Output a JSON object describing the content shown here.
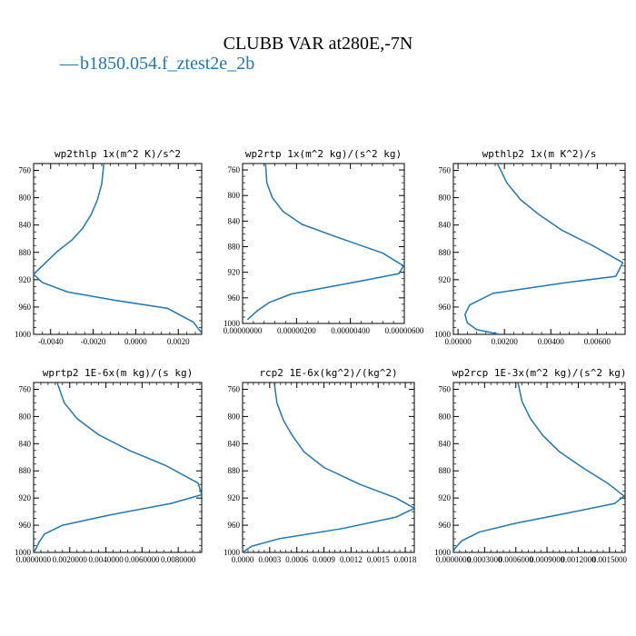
{
  "figure": {
    "title": "CLUBB VAR at280E,-7N",
    "legend": {
      "marker": "—",
      "label": "b1850.054.f_ztest2e_2b",
      "color": "#1f77b4"
    }
  },
  "chart_data": [
    {
      "type": "line",
      "title": "wp2thlp  1x(m^2 K)/s^2",
      "xlim": [
        -0.0048,
        0.0031
      ],
      "ylim": [
        1000,
        750
      ],
      "x_ticks": [
        -0.004,
        -0.002,
        0.0,
        0.002
      ],
      "x_tick_labels": [
        "-0.0040",
        "-0.0020",
        "0.0000",
        "0.0020"
      ],
      "y_ticks": [
        760,
        800,
        840,
        880,
        920,
        960,
        1000
      ],
      "y_tick_labels": [
        "760",
        "800",
        "840",
        "880",
        "920",
        "960",
        "1000"
      ],
      "series": [
        {
          "color": "#1f77b4",
          "x": [
            -0.0015,
            -0.0016,
            -0.0018,
            -0.0021,
            -0.0025,
            -0.003,
            -0.0037,
            -0.0043,
            -0.0048,
            -0.0044,
            -0.0032,
            -0.001,
            0.0015,
            0.0027,
            0.0031
          ],
          "y": [
            750,
            780,
            803,
            825,
            845,
            862,
            879,
            897,
            912,
            924,
            938,
            950,
            962,
            982,
            998
          ]
        }
      ]
    },
    {
      "type": "line",
      "title": "wp2rtp  1x(m^2 kg)/(s^2 kg)",
      "xlim": [
        0.0,
        6e-06
      ],
      "ylim": [
        1000,
        750
      ],
      "x_ticks": [
        0.0,
        2e-06,
        4e-06,
        6e-06
      ],
      "x_tick_labels": [
        "0.00000000",
        "0.00000200",
        "0.00000400",
        "0.00000600"
      ],
      "y_ticks": [
        760,
        800,
        840,
        880,
        920,
        960,
        1000
      ],
      "y_tick_labels": [
        "760",
        "800",
        "840",
        "880",
        "920",
        "960",
        "1000"
      ],
      "series": [
        {
          "color": "#1f77b4",
          "x": [
            8.5e-07,
            9e-07,
            1.1e-06,
            1.5e-06,
            2.2e-06,
            3.5e-06,
            5.2e-06,
            5.97e-06,
            5.8e-06,
            4.6e-06,
            3.2e-06,
            1.8e-06,
            1e-06,
            5.5e-07,
            1.8e-07
          ],
          "y": [
            750,
            780,
            803,
            825,
            845,
            865,
            890,
            910,
            922,
            932,
            943,
            954,
            967,
            980,
            994
          ]
        }
      ]
    },
    {
      "type": "line",
      "title": "wpthlp2  1x(m K^2)/s",
      "xlim": [
        -0.0002,
        0.0072
      ],
      "ylim": [
        1000,
        750
      ],
      "x_ticks": [
        0.0,
        0.002,
        0.004,
        0.006
      ],
      "x_tick_labels": [
        "0.00000",
        "0.00200",
        "0.00400",
        "0.00600"
      ],
      "y_ticks": [
        760,
        800,
        840,
        880,
        920,
        960,
        1000
      ],
      "y_tick_labels": [
        "760",
        "800",
        "840",
        "880",
        "920",
        "960",
        "1000"
      ],
      "series": [
        {
          "color": "#1f77b4",
          "x": [
            0.0017,
            0.0021,
            0.0027,
            0.0035,
            0.0045,
            0.0058,
            0.0071,
            0.0068,
            0.0045,
            0.0015,
            0.0005,
            0.0003,
            0.0004,
            0.0008,
            0.0018
          ],
          "y": [
            750,
            778,
            803,
            825,
            848,
            870,
            895,
            915,
            925,
            940,
            957,
            971,
            983,
            993,
            1000
          ]
        }
      ]
    },
    {
      "type": "line",
      "title": "wprtp2  1E-6x(m kg)/(s kg)",
      "xlim": [
        0.0,
        0.0093
      ],
      "ylim": [
        1000,
        750
      ],
      "x_ticks": [
        0.0,
        0.002,
        0.004,
        0.006,
        0.008
      ],
      "x_tick_labels": [
        "0.0000000",
        "0.0020000",
        "0.0040000",
        "0.0060000",
        "0.0080000"
      ],
      "y_ticks": [
        760,
        800,
        840,
        880,
        920,
        960,
        1000
      ],
      "y_tick_labels": [
        "760",
        "800",
        "840",
        "880",
        "920",
        "960",
        "1000"
      ],
      "series": [
        {
          "color": "#1f77b4",
          "x": [
            0.0013,
            0.0017,
            0.0024,
            0.0036,
            0.0053,
            0.0073,
            0.0091,
            0.0093,
            0.0076,
            0.0042,
            0.0016,
            0.0006,
            0.0003,
            0.0001,
            0.0
          ],
          "y": [
            750,
            780,
            803,
            827,
            850,
            872,
            898,
            915,
            928,
            945,
            960,
            973,
            985,
            996,
            1000
          ]
        }
      ]
    },
    {
      "type": "line",
      "title": "rcp2  1E-6x(kg^2)/(kg^2)",
      "xlim": [
        0.0,
        0.0019
      ],
      "ylim": [
        1000,
        750
      ],
      "x_ticks": [
        0.0,
        0.0003,
        0.0006,
        0.0009,
        0.0012,
        0.0015,
        0.0018
      ],
      "x_tick_labels": [
        "0.0000",
        "0.0003",
        "0.0006",
        "0.0009",
        "0.0012",
        "0.0015",
        "0.0018"
      ],
      "y_ticks": [
        760,
        800,
        840,
        880,
        920,
        960,
        1000
      ],
      "y_tick_labels": [
        "760",
        "800",
        "840",
        "880",
        "920",
        "960",
        "1000"
      ],
      "series": [
        {
          "color": "#1f77b4",
          "x": [
            0.00035,
            0.00038,
            0.00045,
            0.00055,
            0.00068,
            0.0009,
            0.0013,
            0.0017,
            0.0019,
            0.0017,
            0.0011,
            0.0004,
            0.0001,
            2e-05,
            0.0
          ],
          "y": [
            750,
            780,
            805,
            828,
            852,
            875,
            900,
            920,
            935,
            948,
            965,
            980,
            991,
            998,
            1000
          ]
        }
      ]
    },
    {
      "type": "line",
      "title": "wp2rcp  1E-3x(m^2 kg)/(s^2 kg)",
      "xlim": [
        0.0,
        0.00165
      ],
      "ylim": [
        1000,
        750
      ],
      "x_ticks": [
        0.0,
        0.0003,
        0.0006,
        0.0009,
        0.0012,
        0.0015
      ],
      "x_tick_labels": [
        "0.0000000",
        "0.0003000",
        "0.0006000",
        "0.0009000",
        "0.0012000",
        "0.0015000"
      ],
      "y_ticks": [
        760,
        800,
        840,
        880,
        920,
        960,
        1000
      ],
      "y_tick_labels": [
        "760",
        "800",
        "840",
        "880",
        "920",
        "960",
        "1000"
      ],
      "series": [
        {
          "color": "#1f77b4",
          "x": [
            0.00062,
            0.00066,
            0.00074,
            0.00086,
            0.00102,
            0.00125,
            0.00148,
            0.00164,
            0.00155,
            0.0011,
            0.0006,
            0.00025,
            8e-05,
            1e-05,
            0.0
          ],
          "y": [
            750,
            778,
            803,
            828,
            852,
            876,
            898,
            917,
            928,
            942,
            957,
            970,
            983,
            995,
            1000
          ]
        }
      ]
    }
  ]
}
